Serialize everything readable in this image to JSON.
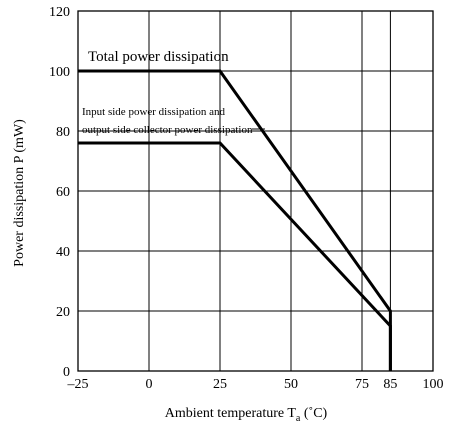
{
  "chart_data": {
    "type": "line",
    "title": "",
    "xlabel": "Ambient temperature T",
    "xlabel_sub": "a",
    "xlabel_unit": " (˚C)",
    "ylabel": "Power dissipation P (mW)",
    "xlim": [
      -25,
      100
    ],
    "ylim": [
      0,
      120
    ],
    "x_ticks": [
      -25,
      0,
      25,
      50,
      75,
      85,
      100
    ],
    "x_tick_labels": [
      "–25",
      "0",
      "25",
      "50",
      "75",
      "85",
      "100"
    ],
    "y_ticks": [
      0,
      20,
      40,
      60,
      80,
      100,
      120
    ],
    "y_tick_labels": [
      "0",
      "20",
      "40",
      "60",
      "80",
      "100",
      "120"
    ],
    "grid": true,
    "series": [
      {
        "name": "Total power dissipation",
        "x": [
          -25,
          25,
          85,
          85
        ],
        "y": [
          100,
          100,
          20,
          0
        ]
      },
      {
        "name": "Input side power dissipation and output side collector power dissipation",
        "x": [
          -25,
          25,
          85,
          85
        ],
        "y": [
          76,
          76,
          15,
          0
        ]
      }
    ],
    "annotations": [
      "Total power dissipation",
      "Input side power dissipation and",
      "output side collector power dissipation"
    ]
  }
}
